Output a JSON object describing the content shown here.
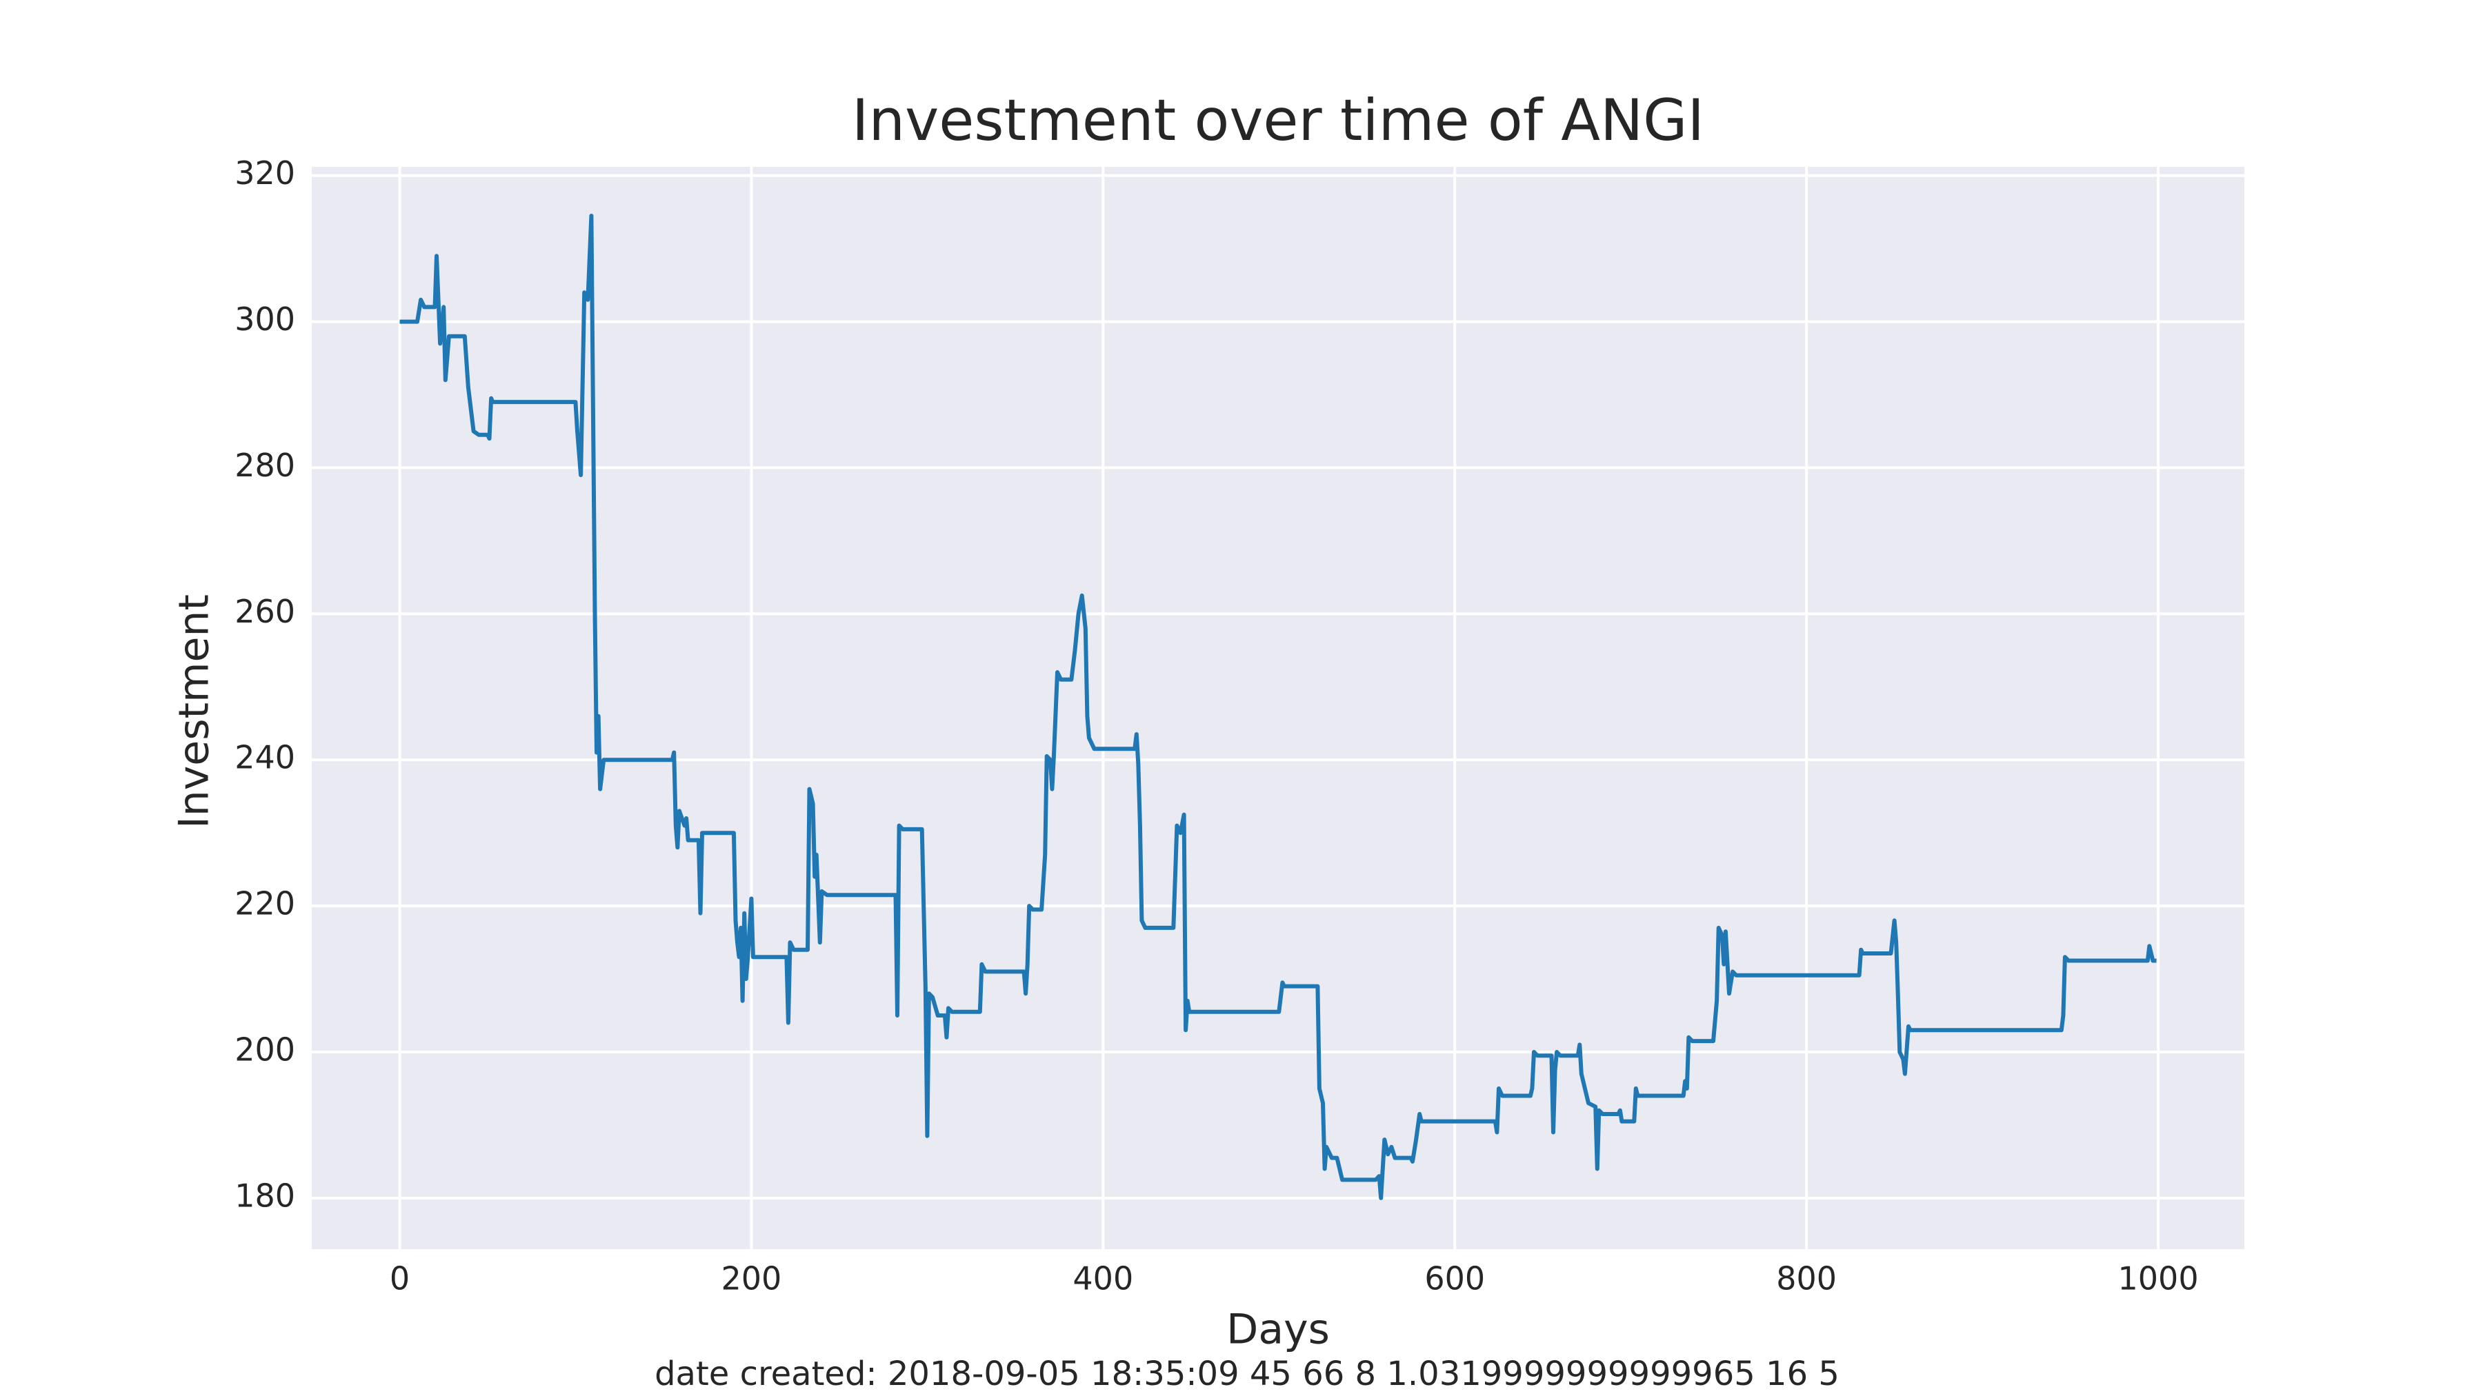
{
  "chart_data": {
    "type": "line",
    "title": "Investment over time of ANGI",
    "x_label": "Days",
    "y_label": "Investment",
    "caption": "date created: 2018-09-05 18:35:09 45 66 8 1.0319999999999965 16 5",
    "xlim": [
      -50,
      1049
    ],
    "xticks": [
      0,
      200,
      400,
      600,
      800,
      1000
    ],
    "ylim": [
      173,
      321.2
    ],
    "yticks": [
      180,
      200,
      220,
      240,
      260,
      280,
      300,
      320
    ],
    "grid": true,
    "series": [
      {
        "color": "#1f77b4",
        "x": [
          0,
          10,
          12,
          14,
          20,
          21,
          23,
          25,
          26,
          28,
          37,
          39,
          42,
          45,
          50,
          51,
          52,
          53,
          100,
          101,
          103,
          105,
          107,
          109,
          111,
          112,
          113,
          114,
          116,
          155,
          156,
          157,
          158,
          159,
          162,
          163,
          164,
          170,
          171,
          172,
          173,
          190,
          191,
          192,
          193,
          194,
          195,
          196,
          197,
          198,
          200,
          201,
          203,
          220,
          221,
          222,
          224,
          232,
          233,
          235,
          236,
          237,
          239,
          240,
          243,
          282,
          283,
          284,
          286,
          297,
          299,
          300,
          301,
          303,
          306,
          310,
          311,
          312,
          314,
          330,
          331,
          333,
          355,
          356,
          357,
          358,
          360,
          365,
          367,
          368,
          370,
          371,
          372,
          374,
          376,
          382,
          384,
          386,
          388,
          390,
          391,
          392,
          395,
          418,
          419,
          420,
          421,
          422,
          424,
          440,
          442,
          444,
          446,
          447,
          448,
          449,
          500,
          502,
          503,
          522,
          523,
          525,
          526,
          527,
          530,
          533,
          536,
          555,
          557,
          558,
          560,
          562,
          564,
          566,
          575,
          576,
          578,
          580,
          581,
          623,
          624,
          625,
          627,
          643,
          644,
          645,
          647,
          655,
          656,
          657,
          658,
          660,
          670,
          671,
          672,
          674,
          676,
          680,
          681,
          682,
          684,
          693,
          694,
          695,
          702,
          703,
          704,
          730,
          731,
          732,
          733,
          735,
          747,
          749,
          750,
          752,
          753,
          754,
          756,
          758,
          760,
          830,
          831,
          832,
          848,
          850,
          851,
          852,
          853,
          855,
          856,
          858,
          859,
          945,
          946,
          947,
          949,
          994,
          995,
          997,
          999
        ],
        "values": [
          300,
          300,
          303,
          302,
          302,
          309,
          297,
          302,
          292,
          298,
          298,
          291,
          285,
          284.5,
          284.5,
          284,
          289.5,
          289,
          289,
          285,
          279,
          304,
          303,
          314.5,
          260,
          241,
          246,
          236,
          240,
          240,
          241,
          231,
          228,
          233,
          231,
          232,
          229,
          229,
          219,
          230,
          230,
          230,
          218,
          215,
          213,
          217,
          207,
          219,
          210,
          213,
          221,
          213,
          213,
          213,
          204,
          215,
          214,
          214,
          236,
          234,
          224,
          227,
          215,
          222,
          221.5,
          221.5,
          205,
          231,
          230.5,
          230.5,
          209,
          188.5,
          208,
          207.5,
          205,
          205,
          202,
          206,
          205.5,
          205.5,
          212,
          211,
          211,
          208,
          212,
          220,
          219.5,
          219.5,
          227,
          240.5,
          240,
          236,
          240.5,
          252,
          251,
          251,
          255,
          260,
          262.5,
          258,
          246,
          243,
          241.5,
          241.5,
          243.5,
          239.5,
          231,
          218,
          217,
          217,
          231,
          230,
          232.5,
          203,
          207,
          205.5,
          205.5,
          209.5,
          209,
          209,
          195,
          193,
          184,
          187,
          185.5,
          185.5,
          182.5,
          182.5,
          183,
          180,
          188,
          186,
          187,
          185.5,
          185.5,
          185,
          188,
          191.5,
          190.5,
          190.5,
          189,
          195,
          194,
          194,
          195,
          200,
          199.5,
          199.5,
          189,
          197.5,
          200,
          199.5,
          199.5,
          201,
          197,
          195,
          193,
          192.5,
          184,
          192,
          191.5,
          191.5,
          192,
          190.5,
          190.5,
          195,
          194,
          194,
          196,
          195,
          202,
          201.5,
          201.5,
          207,
          217,
          216,
          212,
          216.5,
          208,
          211,
          210.5,
          210.5,
          214,
          213.5,
          213.5,
          218,
          215,
          208,
          200,
          199,
          197,
          203.5,
          203,
          203,
          205,
          213,
          212.5,
          212.5,
          214.5,
          212.5,
          212.5
        ]
      }
    ]
  }
}
